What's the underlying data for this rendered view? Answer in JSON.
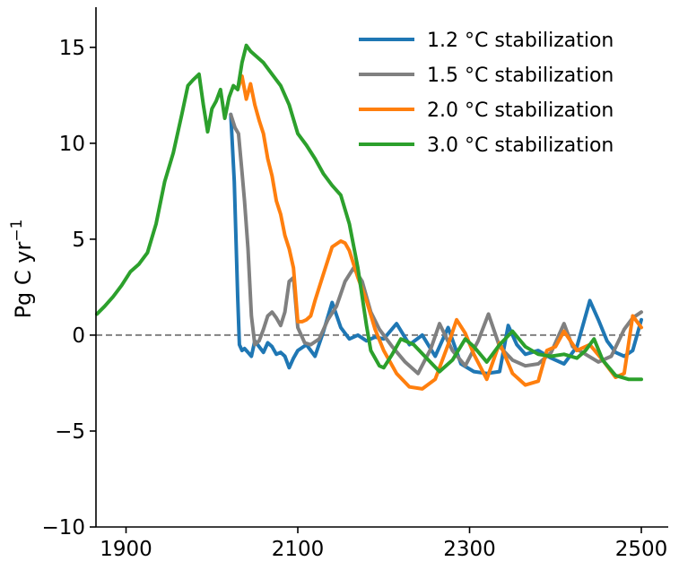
{
  "chart_data": {
    "type": "line",
    "title": "",
    "xlabel": "",
    "ylabel": "Pg C yr",
    "ylabel_superscript": "−1",
    "xlim": [
      1865,
      2500
    ],
    "ylim": [
      -10,
      17
    ],
    "xticks": [
      1900,
      2100,
      2300,
      2500
    ],
    "xtick_labels": [
      "1900",
      "2100",
      "2300",
      "2500"
    ],
    "yticks": [
      -10,
      -5,
      0,
      5,
      10,
      15
    ],
    "ytick_labels": [
      "−10",
      "−5",
      "0",
      "5",
      "10",
      "15"
    ],
    "zero_line": {
      "y": 0,
      "style": "dashed",
      "color": "#808080"
    },
    "grid": false,
    "legend_position": "top-right",
    "series": [
      {
        "name": "1.2 °C stabilization",
        "color": "#1f77b4",
        "x": [
          2022,
          2026,
          2030,
          2032,
          2035,
          2038,
          2042,
          2046,
          2050,
          2055,
          2060,
          2065,
          2070,
          2075,
          2080,
          2085,
          2090,
          2095,
          2100,
          2110,
          2120,
          2130,
          2140,
          2150,
          2160,
          2170,
          2180,
          2190,
          2200,
          2215,
          2230,
          2245,
          2260,
          2275,
          2290,
          2305,
          2320,
          2335,
          2345,
          2355,
          2365,
          2380,
          2395,
          2410,
          2425,
          2440,
          2450,
          2460,
          2470,
          2480,
          2490,
          2500
        ],
        "y": [
          11.5,
          8,
          2,
          -0.5,
          -0.8,
          -0.7,
          -0.9,
          -1.1,
          -0.3,
          -0.6,
          -0.9,
          -0.4,
          -0.6,
          -1.0,
          -0.9,
          -1.1,
          -1.7,
          -1.2,
          -0.8,
          -0.5,
          -1.1,
          0.2,
          1.7,
          0.4,
          -0.2,
          0.0,
          -0.3,
          -0.1,
          -0.2,
          0.6,
          -0.5,
          0.0,
          -1.1,
          0.4,
          -1.5,
          -1.9,
          -2.0,
          -1.9,
          0.5,
          -0.5,
          -1.0,
          -0.8,
          -1.2,
          -1.5,
          -0.6,
          1.8,
          0.8,
          -0.3,
          -0.9,
          -1.1,
          -0.8,
          0.8
        ]
      },
      {
        "name": "1.5 °C stabilization",
        "color": "#808080",
        "x": [
          2022,
          2027,
          2031,
          2035,
          2038,
          2042,
          2046,
          2050,
          2055,
          2060,
          2065,
          2070,
          2075,
          2080,
          2085,
          2090,
          2095,
          2100,
          2108,
          2115,
          2125,
          2135,
          2145,
          2155,
          2165,
          2175,
          2185,
          2195,
          2210,
          2225,
          2240,
          2255,
          2265,
          2280,
          2295,
          2310,
          2322,
          2335,
          2350,
          2365,
          2380,
          2395,
          2410,
          2420,
          2435,
          2450,
          2465,
          2480,
          2490,
          2500
        ],
        "y": [
          11.5,
          10.8,
          10.5,
          8.5,
          7,
          4.5,
          1,
          -0.5,
          -0.3,
          0.3,
          1.0,
          1.2,
          0.9,
          0.5,
          1.2,
          2.8,
          3.0,
          0.4,
          -0.4,
          -0.5,
          -0.2,
          0.8,
          1.5,
          2.8,
          3.5,
          2.8,
          1.2,
          0.3,
          -0.6,
          -1.4,
          -2.0,
          -0.7,
          0.6,
          -0.8,
          -1.6,
          -0.3,
          1.1,
          -0.6,
          -1.3,
          -1.6,
          -1.5,
          -0.9,
          0.6,
          -0.6,
          -1.0,
          -1.4,
          -1.1,
          0.3,
          0.9,
          1.2
        ]
      },
      {
        "name": "2.0 °C stabilization",
        "color": "#ff7f0e",
        "x": [
          2030,
          2035,
          2040,
          2045,
          2050,
          2055,
          2060,
          2065,
          2070,
          2075,
          2080,
          2085,
          2090,
          2095,
          2100,
          2105,
          2110,
          2115,
          2120,
          2130,
          2140,
          2150,
          2155,
          2160,
          2165,
          2170,
          2180,
          2190,
          2200,
          2215,
          2230,
          2245,
          2260,
          2275,
          2285,
          2295,
          2305,
          2320,
          2335,
          2350,
          2365,
          2380,
          2390,
          2400,
          2410,
          2425,
          2440,
          2455,
          2470,
          2480,
          2490,
          2500
        ],
        "y": [
          12.8,
          13.5,
          12.3,
          13.1,
          12.0,
          11.2,
          10.5,
          9.2,
          8.3,
          7.0,
          6.3,
          5.2,
          4.5,
          3.5,
          0.7,
          0.7,
          0.8,
          1.0,
          1.8,
          3.2,
          4.6,
          4.9,
          4.8,
          4.4,
          3.7,
          3.0,
          1.8,
          0.3,
          -0.8,
          -2.0,
          -2.7,
          -2.8,
          -2.3,
          -0.5,
          0.8,
          0.1,
          -1.0,
          -2.3,
          -0.4,
          -2.0,
          -2.6,
          -2.4,
          -0.8,
          -0.6,
          0.2,
          -0.8,
          -0.5,
          -1.3,
          -2.2,
          -2.0,
          1.0,
          0.4
        ]
      },
      {
        "name": "3.0 °C stabilization",
        "color": "#2ca02c",
        "x": [
          1866,
          1875,
          1885,
          1895,
          1905,
          1915,
          1925,
          1935,
          1945,
          1955,
          1965,
          1972,
          1978,
          1985,
          1990,
          1995,
          2000,
          2005,
          2010,
          2015,
          2020,
          2025,
          2030,
          2035,
          2040,
          2045,
          2050,
          2060,
          2070,
          2080,
          2090,
          2100,
          2110,
          2120,
          2130,
          2140,
          2150,
          2160,
          2170,
          2180,
          2185,
          2190,
          2195,
          2200,
          2210,
          2220,
          2235,
          2250,
          2265,
          2280,
          2295,
          2305,
          2320,
          2335,
          2350,
          2365,
          2380,
          2395,
          2410,
          2425,
          2435,
          2445,
          2455,
          2470,
          2485,
          2500
        ],
        "y": [
          1.1,
          1.5,
          2.0,
          2.6,
          3.3,
          3.7,
          4.3,
          5.8,
          8.0,
          9.5,
          11.5,
          13.0,
          13.3,
          13.6,
          12.0,
          10.6,
          11.8,
          12.2,
          12.8,
          11.3,
          12.4,
          13.0,
          12.8,
          14.2,
          15.1,
          14.8,
          14.6,
          14.2,
          13.6,
          13.0,
          12.0,
          10.5,
          9.9,
          9.2,
          8.4,
          7.8,
          7.3,
          5.8,
          3.5,
          0.5,
          -0.8,
          -1.2,
          -1.6,
          -1.7,
          -1.0,
          -0.2,
          -0.5,
          -1.2,
          -1.9,
          -1.3,
          -0.2,
          -0.6,
          -1.4,
          -0.5,
          0.2,
          -0.6,
          -1.0,
          -1.1,
          -1.0,
          -1.2,
          -0.8,
          -0.2,
          -1.3,
          -2.1,
          -2.3,
          -2.3
        ]
      }
    ]
  }
}
